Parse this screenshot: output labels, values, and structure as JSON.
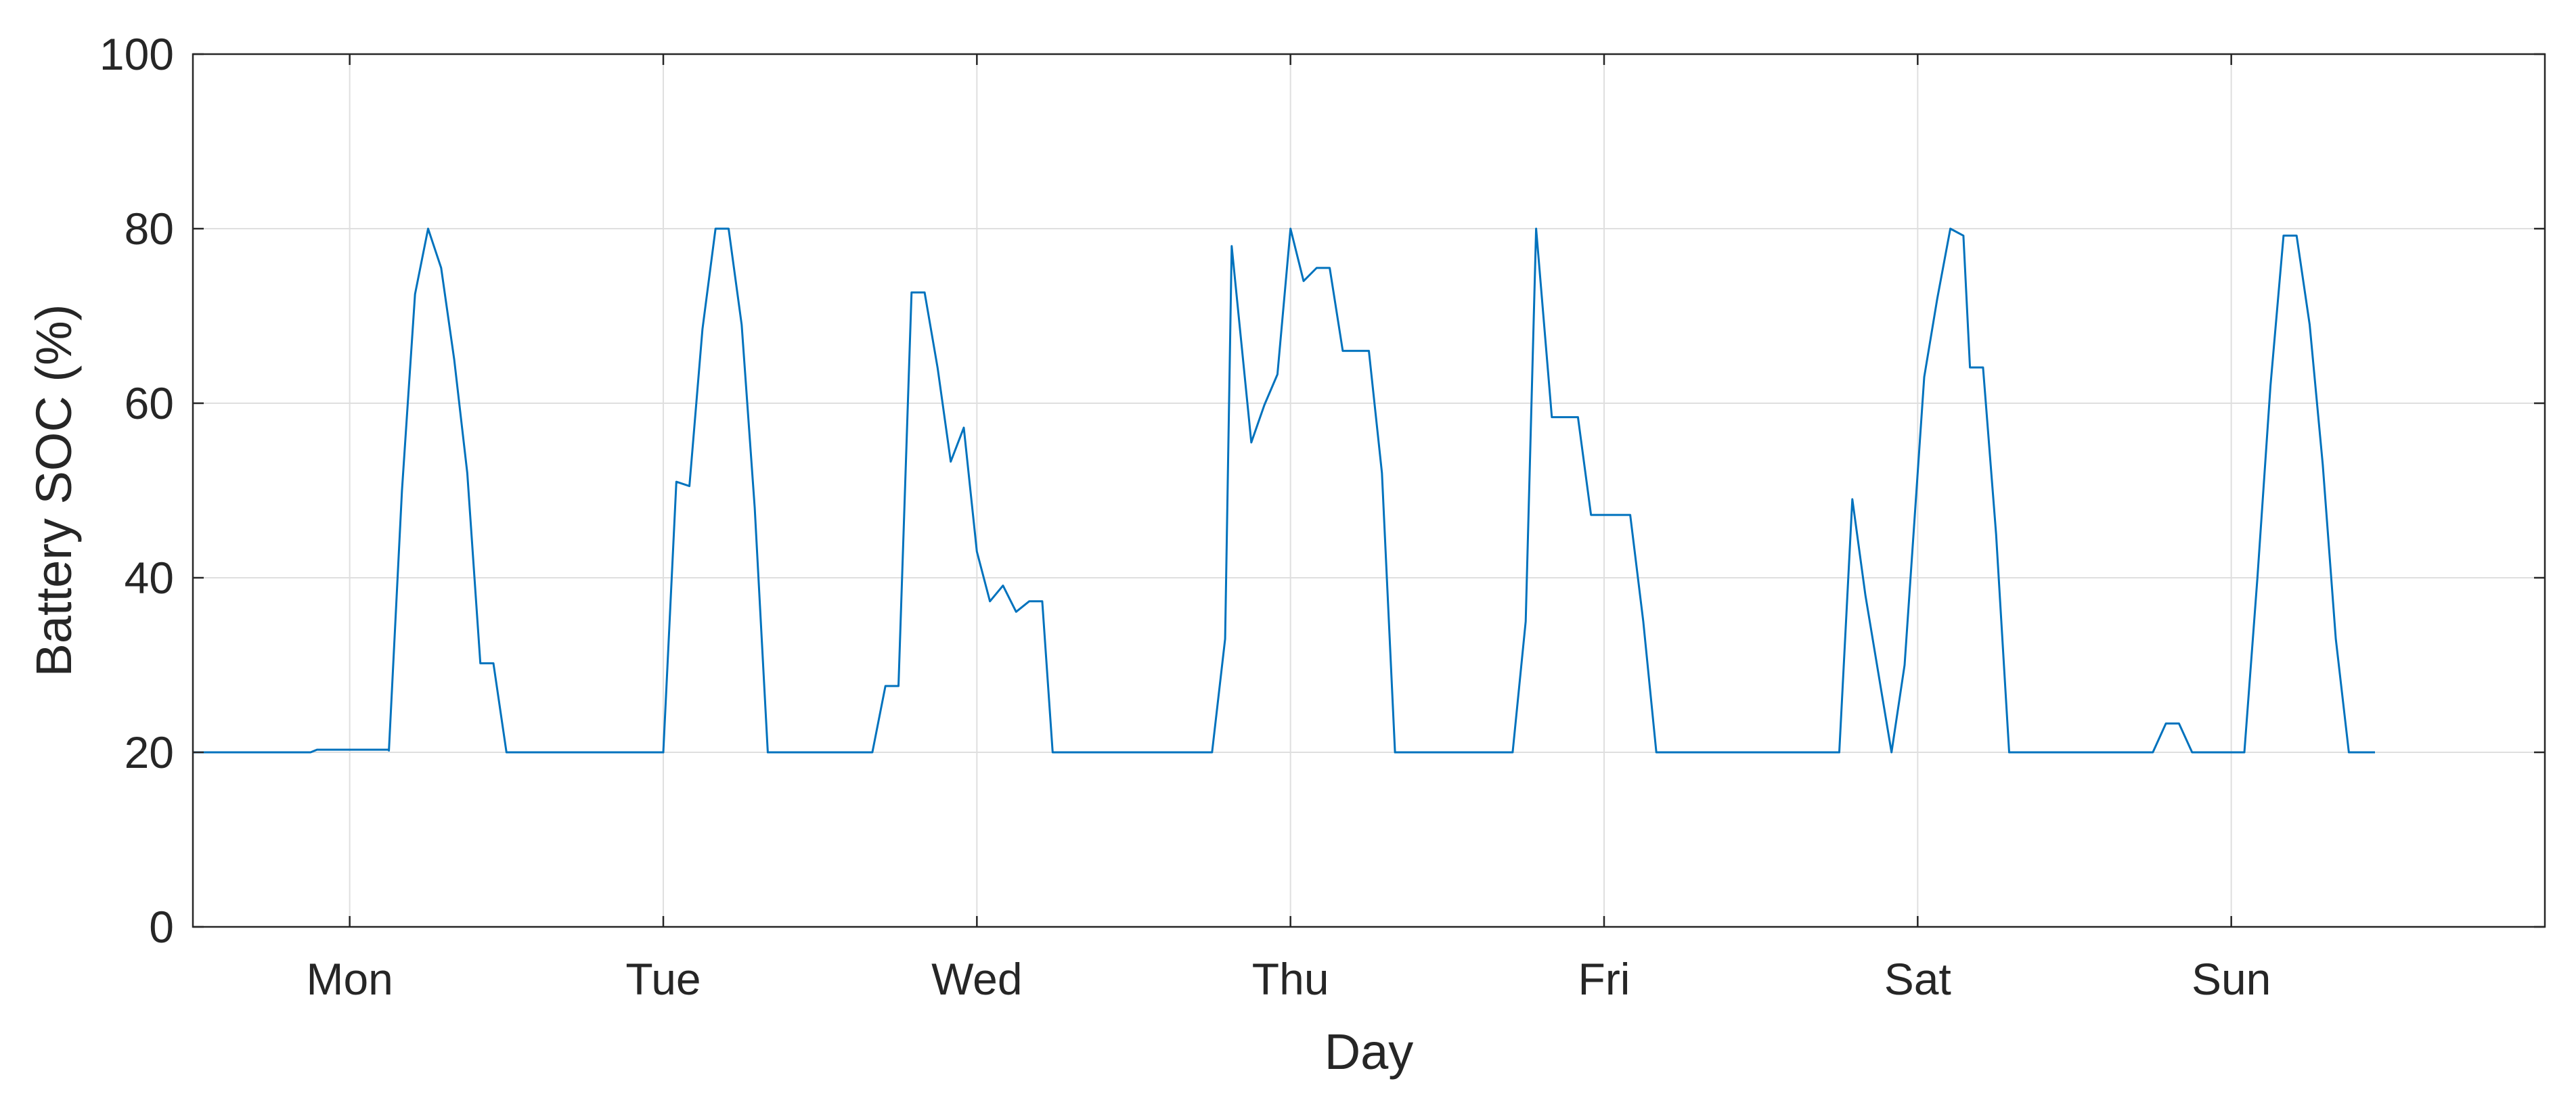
{
  "chart_data": {
    "type": "line",
    "title": "",
    "xlabel": "Day",
    "ylabel": "Battery SOC (%)",
    "ylim": [
      0,
      100
    ],
    "xlim": [
      -12,
      168
    ],
    "grid": true,
    "legend": "none",
    "y_ticks": [
      {
        "value": 0,
        "label": "0"
      },
      {
        "value": 20,
        "label": "20"
      },
      {
        "value": 40,
        "label": "40"
      },
      {
        "value": 60,
        "label": "60"
      },
      {
        "value": 80,
        "label": "80"
      },
      {
        "value": 100,
        "label": "100"
      }
    ],
    "x_ticks": [
      {
        "value": 0,
        "label": "Mon"
      },
      {
        "value": 24,
        "label": "Tue"
      },
      {
        "value": 48,
        "label": "Wed"
      },
      {
        "value": 72,
        "label": "Thu"
      },
      {
        "value": 96,
        "label": "Fri"
      },
      {
        "value": 120,
        "label": "Sat"
      },
      {
        "value": 144,
        "label": "Sun"
      }
    ],
    "series": [
      {
        "color": "#0072bd",
        "points": [
          [
            -12,
            20
          ],
          [
            -3,
            20
          ],
          [
            -2.5,
            20.3
          ],
          [
            3,
            20.3
          ],
          [
            3,
            20.2
          ],
          [
            4,
            50
          ],
          [
            5,
            72.5
          ],
          [
            6,
            80
          ],
          [
            7,
            75.5
          ],
          [
            8,
            65
          ],
          [
            9,
            52
          ],
          [
            10,
            30.2
          ],
          [
            11,
            30.2
          ],
          [
            12,
            20
          ],
          [
            24,
            20
          ],
          [
            25,
            51
          ],
          [
            26,
            50.5
          ],
          [
            27,
            68.5
          ],
          [
            28,
            80
          ],
          [
            29,
            80
          ],
          [
            30,
            69
          ],
          [
            31,
            48
          ],
          [
            32,
            20
          ],
          [
            40,
            20
          ],
          [
            41,
            27.6
          ],
          [
            42,
            27.6
          ],
          [
            43,
            72.7
          ],
          [
            44,
            72.7
          ],
          [
            45,
            64
          ],
          [
            46,
            53.3
          ],
          [
            47,
            57.2
          ],
          [
            48,
            43
          ],
          [
            49,
            37.3
          ],
          [
            50,
            39.1
          ],
          [
            51,
            36.1
          ],
          [
            52,
            37.3
          ],
          [
            53,
            37.3
          ],
          [
            53.8,
            20
          ],
          [
            66,
            20
          ],
          [
            67,
            33
          ],
          [
            67.5,
            78
          ],
          [
            69,
            55.5
          ],
          [
            70,
            59.8
          ],
          [
            71,
            63.3
          ],
          [
            72,
            80
          ],
          [
            73,
            74
          ],
          [
            74,
            75.5
          ],
          [
            75,
            75.5
          ],
          [
            76,
            66
          ],
          [
            78,
            66
          ],
          [
            79,
            52
          ],
          [
            80,
            20
          ],
          [
            89,
            20
          ],
          [
            90,
            35
          ],
          [
            90.8,
            80
          ],
          [
            92,
            58.4
          ],
          [
            94,
            58.4
          ],
          [
            95,
            47.2
          ],
          [
            98,
            47.2
          ],
          [
            99,
            35
          ],
          [
            100,
            20
          ],
          [
            114,
            20
          ],
          [
            115,
            49
          ],
          [
            116,
            38
          ],
          [
            118,
            20
          ],
          [
            119,
            30
          ],
          [
            120.5,
            63
          ],
          [
            121.5,
            72
          ],
          [
            122.5,
            80
          ],
          [
            123.5,
            79.2
          ],
          [
            124,
            64.1
          ],
          [
            125,
            64.1
          ],
          [
            126,
            45
          ],
          [
            127,
            20
          ],
          [
            138,
            20
          ],
          [
            139,
            23.3
          ],
          [
            140,
            23.3
          ],
          [
            141,
            20
          ],
          [
            145,
            20
          ],
          [
            146,
            40
          ],
          [
            147,
            62
          ],
          [
            148,
            79.2
          ],
          [
            149,
            79.2
          ],
          [
            150,
            69
          ],
          [
            151,
            53
          ],
          [
            152,
            33
          ],
          [
            153,
            20
          ],
          [
            155,
            20
          ]
        ]
      }
    ]
  }
}
